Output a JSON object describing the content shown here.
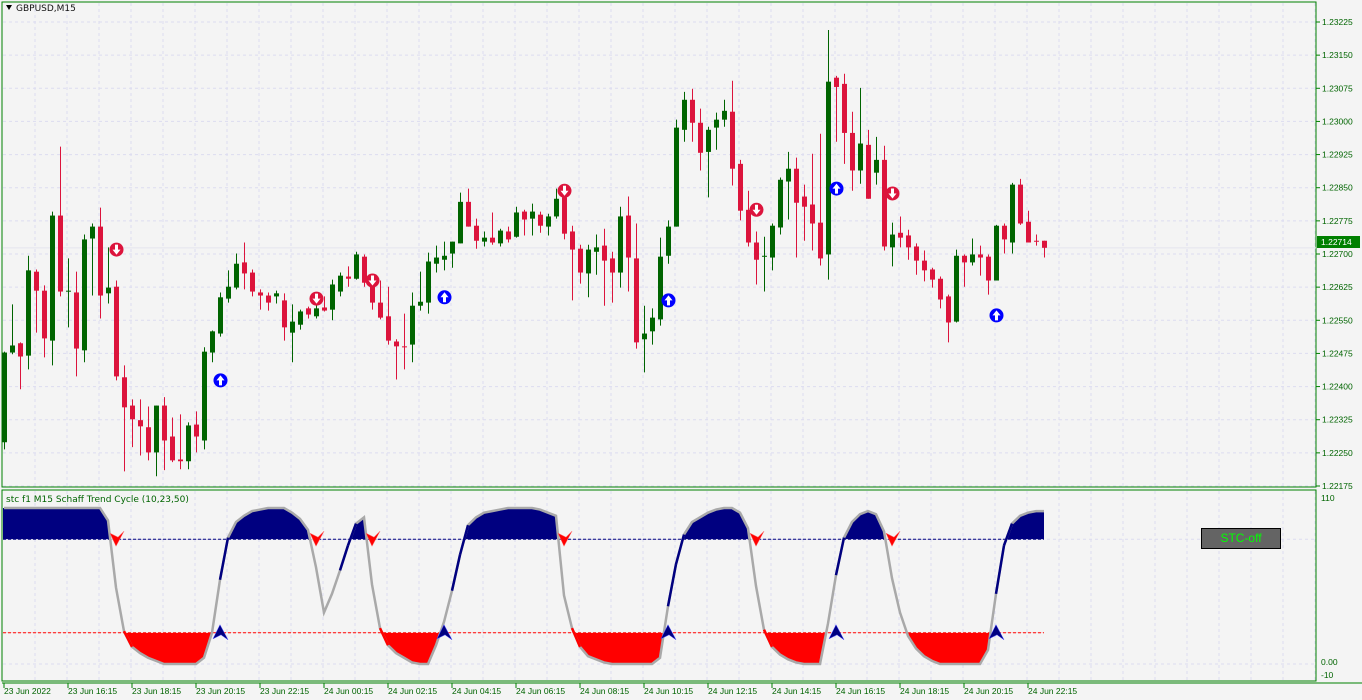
{
  "window": {
    "symbol_title": "GBPUSD,M15",
    "collapse_icon": "triangle-down-icon"
  },
  "indicator": {
    "title": "stc f1 M15 Schaff Trend Cycle (10,23,50)",
    "button_label": "STC-off",
    "axis_labels": [
      "110",
      "0.00",
      "-10"
    ]
  },
  "colors": {
    "bull": "#006400",
    "bear": "#dc143c",
    "border": "#008000",
    "grid": "#dcdcf0",
    "stc_line": "#a9a9a9",
    "stc_high_fill": "#000080",
    "stc_low_fill": "#ff0000",
    "buy_signal": "#0000ff",
    "sell_signal": "#dc143c",
    "button_text": "#00ff00"
  },
  "chart_data": {
    "type": "candlestick",
    "symbol": "GBPUSD",
    "timeframe": "M15",
    "price_axis": [
      "1.23225",
      "1.23150",
      "1.23075",
      "1.23000",
      "1.22925",
      "1.22850",
      "1.22775",
      "1.22700",
      "1.22625",
      "1.22550",
      "1.22475",
      "1.22400",
      "1.22325",
      "1.22250",
      "1.22175"
    ],
    "ylim": [
      1.22175,
      1.23225
    ],
    "current_price": "1.22714",
    "time_axis": [
      "23 Jun 2022",
      "23 Jun 16:15",
      "23 Jun 18:15",
      "23 Jun 20:15",
      "23 Jun 22:15",
      "24 Jun 00:15",
      "24 Jun 02:15",
      "24 Jun 04:15",
      "24 Jun 06:15",
      "24 Jun 08:15",
      "24 Jun 10:15",
      "24 Jun 12:15",
      "24 Jun 14:15",
      "24 Jun 16:15",
      "24 Jun 18:15",
      "24 Jun 20:15",
      "24 Jun 22:15"
    ],
    "grid": true,
    "ohlc": [
      [
        1.22274,
        1.22479,
        1.22258,
        1.22477
      ],
      [
        1.22477,
        1.22586,
        1.22473,
        1.22493
      ],
      [
        1.22498,
        1.225,
        1.22394,
        1.22468
      ],
      [
        1.2247,
        1.22696,
        1.22439,
        1.22663
      ],
      [
        1.2266,
        1.22665,
        1.22522,
        1.22617
      ],
      [
        1.22617,
        1.22629,
        1.22466,
        1.22509
      ],
      [
        1.22504,
        1.22796,
        1.22448,
        1.22787
      ],
      [
        1.22787,
        1.22943,
        1.22604,
        1.22615
      ],
      [
        1.22615,
        1.2269,
        1.22534,
        1.22617
      ],
      [
        1.22613,
        1.2266,
        1.22423,
        1.22486
      ],
      [
        1.22482,
        1.22744,
        1.22455,
        1.22733
      ],
      [
        1.22735,
        1.22769,
        1.22606,
        1.22762
      ],
      [
        1.22762,
        1.22805,
        1.22554,
        1.22606
      ],
      [
        1.22611,
        1.22715,
        1.22588,
        1.22624
      ],
      [
        1.22626,
        1.2264,
        1.22414,
        1.22423
      ],
      [
        1.22421,
        1.22448,
        1.22208,
        1.22353
      ],
      [
        1.22357,
        1.22371,
        1.22263,
        1.22326
      ],
      [
        1.22324,
        1.22371,
        1.22244,
        1.2231
      ],
      [
        1.22308,
        1.22355,
        1.22233,
        1.22251
      ],
      [
        1.22251,
        1.22357,
        1.22197,
        1.22357
      ],
      [
        1.22357,
        1.22376,
        1.22211,
        1.22278
      ],
      [
        1.22287,
        1.2233,
        1.22229,
        1.22233
      ],
      [
        1.22235,
        1.22337,
        1.22213,
        1.22231
      ],
      [
        1.22231,
        1.22319,
        1.22213,
        1.22312
      ],
      [
        1.22314,
        1.22344,
        1.22251,
        1.22287
      ],
      [
        1.22278,
        1.22489,
        1.22258,
        1.22479
      ],
      [
        1.22477,
        1.22527,
        1.22455,
        1.22525
      ],
      [
        1.2252,
        1.22613,
        1.22513,
        1.22602
      ],
      [
        1.22599,
        1.22663,
        1.2259,
        1.22626
      ],
      [
        1.22624,
        1.22701,
        1.2262,
        1.22678
      ],
      [
        1.22681,
        1.22726,
        1.2262,
        1.22656
      ],
      [
        1.22658,
        1.22665,
        1.22604,
        1.22615
      ],
      [
        1.22613,
        1.2262,
        1.22574,
        1.22606
      ],
      [
        1.22606,
        1.22613,
        1.22572,
        1.2259
      ],
      [
        1.22604,
        1.22617,
        1.22588,
        1.22611
      ],
      [
        1.22595,
        1.22611,
        1.22504,
        1.22534
      ],
      [
        1.22522,
        1.22586,
        1.22455,
        1.22547
      ],
      [
        1.2254,
        1.22574,
        1.22529,
        1.2257
      ],
      [
        1.22577,
        1.22581,
        1.22554,
        1.22563
      ],
      [
        1.22559,
        1.22586,
        1.22554,
        1.22577
      ],
      [
        1.22579,
        1.22604,
        1.2257,
        1.22572
      ],
      [
        1.22574,
        1.22642,
        1.2255,
        1.22631
      ],
      [
        1.22615,
        1.22658,
        1.22604,
        1.22651
      ],
      [
        1.22649,
        1.22672,
        1.22626,
        1.22644
      ],
      [
        1.22644,
        1.22705,
        1.22642,
        1.22699
      ],
      [
        1.22694,
        1.22699,
        1.22626,
        1.22635
      ],
      [
        1.22635,
        1.2264,
        1.22574,
        1.2259
      ],
      [
        1.2259,
        1.2264,
        1.22552,
        1.22556
      ],
      [
        1.22559,
        1.22626,
        1.22495,
        1.22504
      ],
      [
        1.22502,
        1.22507,
        1.22416,
        1.22491
      ],
      [
        1.22491,
        1.22565,
        1.22439,
        1.22489
      ],
      [
        1.22495,
        1.22613,
        1.22455,
        1.22583
      ],
      [
        1.22583,
        1.2266,
        1.22572,
        1.22592
      ],
      [
        1.2259,
        1.22703,
        1.22565,
        1.22683
      ],
      [
        1.22678,
        1.22719,
        1.22658,
        1.22692
      ],
      [
        1.22687,
        1.22728,
        1.22663,
        1.22696
      ],
      [
        1.22701,
        1.22728,
        1.22669,
        1.22728
      ],
      [
        1.22724,
        1.22839,
        1.22724,
        1.22818
      ],
      [
        1.22818,
        1.22848,
        1.22762,
        1.22762
      ],
      [
        1.22764,
        1.2278,
        1.22712,
        1.2273
      ],
      [
        1.22728,
        1.22751,
        1.22717,
        1.22737
      ],
      [
        1.22737,
        1.22794,
        1.22721,
        1.22726
      ],
      [
        1.22724,
        1.22757,
        1.22717,
        1.22753
      ],
      [
        1.22751,
        1.22762,
        1.22726,
        1.22733
      ],
      [
        1.22739,
        1.22807,
        1.22737,
        1.22794
      ],
      [
        1.22796,
        1.228,
        1.22742,
        1.22778
      ],
      [
        1.2278,
        1.22814,
        1.22742,
        1.22796
      ],
      [
        1.22789,
        1.22796,
        1.22748,
        1.22764
      ],
      [
        1.22762,
        1.22791,
        1.22742,
        1.22785
      ],
      [
        1.22785,
        1.22848,
        1.2278,
        1.22825
      ],
      [
        1.22828,
        1.22843,
        1.22733,
        1.22746
      ],
      [
        1.22751,
        1.22764,
        1.22595,
        1.2271
      ],
      [
        1.22712,
        1.22721,
        1.22633,
        1.22658
      ],
      [
        1.22656,
        1.22721,
        1.22602,
        1.2271
      ],
      [
        1.22705,
        1.22744,
        1.22653,
        1.22715
      ],
      [
        1.22719,
        1.22757,
        1.22583,
        1.22685
      ],
      [
        1.2269,
        1.22705,
        1.2259,
        1.22658
      ],
      [
        1.22658,
        1.22807,
        1.22624,
        1.22785
      ],
      [
        1.22787,
        1.2283,
        1.22615,
        1.22692
      ],
      [
        1.2269,
        1.22769,
        1.22486,
        1.225
      ],
      [
        1.22507,
        1.22583,
        1.22432,
        1.2252
      ],
      [
        1.22525,
        1.22577,
        1.22495,
        1.22556
      ],
      [
        1.22552,
        1.22737,
        1.22538,
        1.22694
      ],
      [
        1.22696,
        1.22776,
        1.22678,
        1.22762
      ],
      [
        1.22762,
        1.23004,
        1.22762,
        1.22986
      ],
      [
        1.22981,
        1.23067,
        1.22954,
        1.23049
      ],
      [
        1.23049,
        1.23074,
        1.22954,
        1.22997
      ],
      [
        1.22997,
        1.23029,
        1.22889,
        1.22929
      ],
      [
        1.22931,
        1.22988,
        1.22828,
        1.22981
      ],
      [
        1.22986,
        1.2302,
        1.22936,
        1.23004
      ],
      [
        1.23004,
        1.23049,
        1.22988,
        1.23024
      ],
      [
        1.23022,
        1.23092,
        1.22855,
        1.22893
      ],
      [
        1.22904,
        1.22913,
        1.22776,
        1.22798
      ],
      [
        1.228,
        1.22843,
        1.22717,
        1.22726
      ],
      [
        1.22726,
        1.22751,
        1.22631,
        1.22687
      ],
      [
        1.22694,
        1.22739,
        1.22615,
        1.22696
      ],
      [
        1.22692,
        1.22769,
        1.22663,
        1.22764
      ],
      [
        1.2276,
        1.22873,
        1.22744,
        1.22868
      ],
      [
        1.22864,
        1.22931,
        1.22778,
        1.22893
      ],
      [
        1.22893,
        1.22918,
        1.22692,
        1.22816
      ],
      [
        1.2283,
        1.22857,
        1.2273,
        1.22807
      ],
      [
        1.22812,
        1.22927,
        1.22708,
        1.22769
      ],
      [
        1.22771,
        1.22972,
        1.22674,
        1.2269
      ],
      [
        1.22699,
        1.23207,
        1.22642,
        1.2309
      ],
      [
        1.23099,
        1.23103,
        1.22954,
        1.23078
      ],
      [
        1.23085,
        1.23108,
        1.22904,
        1.22974
      ],
      [
        1.22974,
        1.23022,
        1.22843,
        1.22889
      ],
      [
        1.22889,
        1.23076,
        1.22859,
        1.2295
      ],
      [
        1.22947,
        1.22981,
        1.22825,
        1.22825
      ],
      [
        1.22884,
        1.22965,
        1.22857,
        1.22913
      ],
      [
        1.22913,
        1.22945,
        1.22708,
        1.22717
      ],
      [
        1.22715,
        1.22771,
        1.22672,
        1.22744
      ],
      [
        1.22748,
        1.22785,
        1.22715,
        1.22737
      ],
      [
        1.22742,
        1.22755,
        1.22687,
        1.22715
      ],
      [
        1.22717,
        1.22724,
        1.22653,
        1.22685
      ],
      [
        1.22685,
        1.22708,
        1.22638,
        1.22663
      ],
      [
        1.22665,
        1.22669,
        1.22624,
        1.22642
      ],
      [
        1.22644,
        1.22649,
        1.22577,
        1.22597
      ],
      [
        1.22604,
        1.22608,
        1.225,
        1.22545
      ],
      [
        1.22547,
        1.2271,
        1.22545,
        1.22696
      ],
      [
        1.22696,
        1.22699,
        1.22626,
        1.22681
      ],
      [
        1.22681,
        1.22735,
        1.22674,
        1.22699
      ],
      [
        1.22699,
        1.22719,
        1.22651,
        1.22692
      ],
      [
        1.22694,
        1.22699,
        1.22608,
        1.2264
      ],
      [
        1.2264,
        1.22766,
        1.2264,
        1.22764
      ],
      [
        1.22764,
        1.22769,
        1.22701,
        1.22733
      ],
      [
        1.22726,
        1.22861,
        1.22701,
        1.22857
      ],
      [
        1.22857,
        1.2287,
        1.22766,
        1.22769
      ],
      [
        1.22773,
        1.22798,
        1.22726,
        1.22726
      ],
      [
        1.2273,
        1.22744,
        1.22719,
        1.22728
      ],
      [
        1.2273,
        1.2273,
        1.22692,
        1.22714
      ]
    ],
    "signals": [
      {
        "bar": 14,
        "type": "sell",
        "price": 1.2271
      },
      {
        "bar": 27,
        "type": "buy",
        "price": 1.22414
      },
      {
        "bar": 39,
        "type": "sell",
        "price": 1.22599
      },
      {
        "bar": 46,
        "type": "sell",
        "price": 1.2264
      },
      {
        "bar": 55,
        "type": "buy",
        "price": 1.22602
      },
      {
        "bar": 70,
        "type": "sell",
        "price": 1.22843
      },
      {
        "bar": 83,
        "type": "buy",
        "price": 1.22595
      },
      {
        "bar": 94,
        "type": "sell",
        "price": 1.228
      },
      {
        "bar": 104,
        "type": "buy",
        "price": 1.22848
      },
      {
        "bar": 111,
        "type": "sell",
        "price": 1.22837
      },
      {
        "bar": 124,
        "type": "buy",
        "price": 1.22561
      }
    ],
    "stc": {
      "name": "Schaff Trend Cycle",
      "ylim": [
        -10,
        110
      ],
      "levels": [
        80,
        20
      ],
      "values": [
        100,
        100,
        100,
        100,
        100,
        100,
        100,
        100,
        100,
        100,
        100,
        100,
        100,
        92,
        49,
        21,
        11,
        7,
        4,
        2,
        0,
        0,
        0,
        0,
        0,
        4,
        20,
        54,
        81,
        91,
        95,
        98,
        99,
        100,
        100,
        100,
        97,
        93,
        86,
        62,
        33,
        45,
        60,
        76,
        90,
        94,
        51,
        23,
        12,
        7,
        4,
        1,
        0,
        0,
        12,
        27,
        47,
        70,
        89,
        94,
        97,
        98,
        99,
        100,
        100,
        100,
        100,
        99,
        97,
        95,
        44,
        23,
        11,
        5,
        3,
        1,
        0,
        0,
        0,
        0,
        0,
        0,
        4,
        37,
        64,
        83,
        91,
        94,
        97,
        99,
        100,
        100,
        97,
        87,
        50,
        22,
        11,
        6,
        3,
        1,
        0,
        0,
        0,
        26,
        57,
        81,
        91,
        96,
        98,
        96,
        85,
        55,
        33,
        18,
        10,
        5,
        2,
        0,
        0,
        0,
        0,
        0,
        0,
        9,
        45,
        76,
        90,
        95,
        97,
        98,
        98
      ],
      "sell_arrows": [
        14,
        39,
        46,
        70,
        94,
        111
      ],
      "buy_arrows": [
        27,
        55,
        83,
        104,
        124
      ]
    }
  }
}
